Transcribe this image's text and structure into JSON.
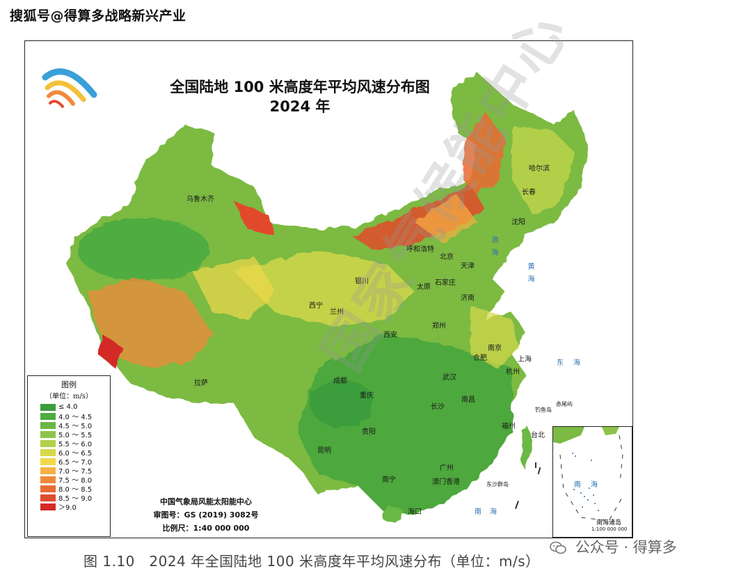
{
  "source_header": "搜狐号@得算多战略新兴产业",
  "map": {
    "title_line1": "全国陆地 100 米高度年平均风速分布图",
    "title_line2": "2024 年",
    "legend": {
      "title": "图例",
      "unit": "（单位：m/s）",
      "items": [
        {
          "label": "≤ 4.0",
          "color": "#3a9d3a"
        },
        {
          "label": "4.0 ～ 4.5",
          "color": "#4fac3f"
        },
        {
          "label": "4.5 ～ 5.0",
          "color": "#6bb844"
        },
        {
          "label": "5.0 ～ 5.5",
          "color": "#8cc34a"
        },
        {
          "label": "5.5 ～ 6.0",
          "color": "#b2cf4a"
        },
        {
          "label": "6.0 ～ 6.5",
          "color": "#d6d84a"
        },
        {
          "label": "6.5 ～ 7.0",
          "color": "#f0d94a"
        },
        {
          "label": "7.0 ～ 7.5",
          "color": "#f6b043"
        },
        {
          "label": "7.5 ～ 8.0",
          "color": "#f08a3a"
        },
        {
          "label": "8.0 ～ 8.5",
          "color": "#ea6a33"
        },
        {
          "label": "8.5 ～ 9.0",
          "color": "#e24a2c"
        },
        {
          "label": "＞9.0",
          "color": "#d42a26"
        }
      ]
    },
    "credits": {
      "org": "中国气象局风能太阳能中心",
      "review_no": "审图号：GS (2019) 3082号",
      "scale": "比例尺：1:40 000 000"
    },
    "cities": {
      "urumqi": "乌鲁木齐",
      "hohhot": "呼和浩特",
      "beijing": "北京",
      "tianjin": "天津",
      "yinchuan": "银川",
      "taiyuan": "太原",
      "shijiazhuang": "石家庄",
      "jinan": "济南",
      "xining": "西宁",
      "lanzhou": "兰州",
      "zhengzhou": "郑州",
      "xian": "西安",
      "nanjing": "南京",
      "hefei": "合肥",
      "shanghai": "上海",
      "hangzhou": "杭州",
      "wuhan": "武汉",
      "lhasa": "拉萨",
      "chengdu": "成都",
      "chongqing": "重庆",
      "changsha": "长沙",
      "nanchang": "南昌",
      "guiyang": "贵阳",
      "fuzhou": "福州",
      "taibei": "台北",
      "kunming": "昆明",
      "guangzhou": "广州",
      "nanning": "南宁",
      "macao_hk": "澳门香港",
      "haikou": "海口",
      "harbin": "哈尔滨",
      "changchun": "长春",
      "shenyang": "沈阳",
      "diaoyu": "钓鱼岛",
      "chiwei": "赤尾屿",
      "dongsha": "东沙群岛"
    },
    "seas": {
      "bohai": "渤海",
      "huanghai": "黄海",
      "donghai": "东海",
      "nanhai": "南海"
    },
    "inset": {
      "sea": "南海",
      "label": "南海诸岛",
      "scale": "1:100 000 000"
    }
  },
  "figure_caption": "图 1.10　2024 年全国陆地 100 米高度年平均风速分布（单位：m/s）",
  "watermark": "国家气候能中心",
  "wechat_mark": "公众号 · 得算多"
}
